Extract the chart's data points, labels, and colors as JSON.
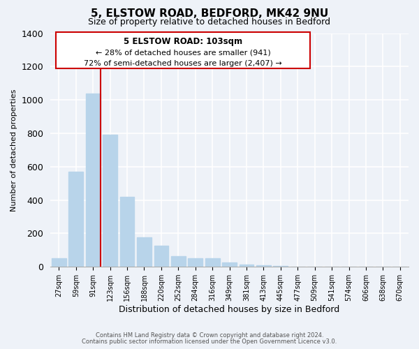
{
  "title": "5, ELSTOW ROAD, BEDFORD, MK42 9NU",
  "subtitle": "Size of property relative to detached houses in Bedford",
  "xlabel": "Distribution of detached houses by size in Bedford",
  "ylabel": "Number of detached properties",
  "bar_labels": [
    "27sqm",
    "59sqm",
    "91sqm",
    "123sqm",
    "156sqm",
    "188sqm",
    "220sqm",
    "252sqm",
    "284sqm",
    "316sqm",
    "349sqm",
    "381sqm",
    "413sqm",
    "445sqm",
    "477sqm",
    "509sqm",
    "541sqm",
    "574sqm",
    "606sqm",
    "638sqm",
    "670sqm"
  ],
  "bar_values": [
    50,
    570,
    1040,
    790,
    420,
    175,
    125,
    65,
    50,
    50,
    25,
    15,
    10,
    5,
    2,
    0,
    0,
    0,
    0,
    0,
    0
  ],
  "bar_color": "#b8d4ea",
  "vline_color": "#cc0000",
  "vline_pos": 2.425,
  "annotation_title": "5 ELSTOW ROAD: 103sqm",
  "annotation_line1": "← 28% of detached houses are smaller (941)",
  "annotation_line2": "72% of semi-detached houses are larger (2,407) →",
  "annotation_box_color": "#ffffff",
  "annotation_box_edge": "#cc0000",
  "ylim": [
    0,
    1400
  ],
  "yticks": [
    0,
    200,
    400,
    600,
    800,
    1000,
    1200,
    1400
  ],
  "footer_line1": "Contains HM Land Registry data © Crown copyright and database right 2024.",
  "footer_line2": "Contains public sector information licensed under the Open Government Licence v3.0.",
  "bg_color": "#eef2f8",
  "plot_bg_color": "#eef2f8"
}
